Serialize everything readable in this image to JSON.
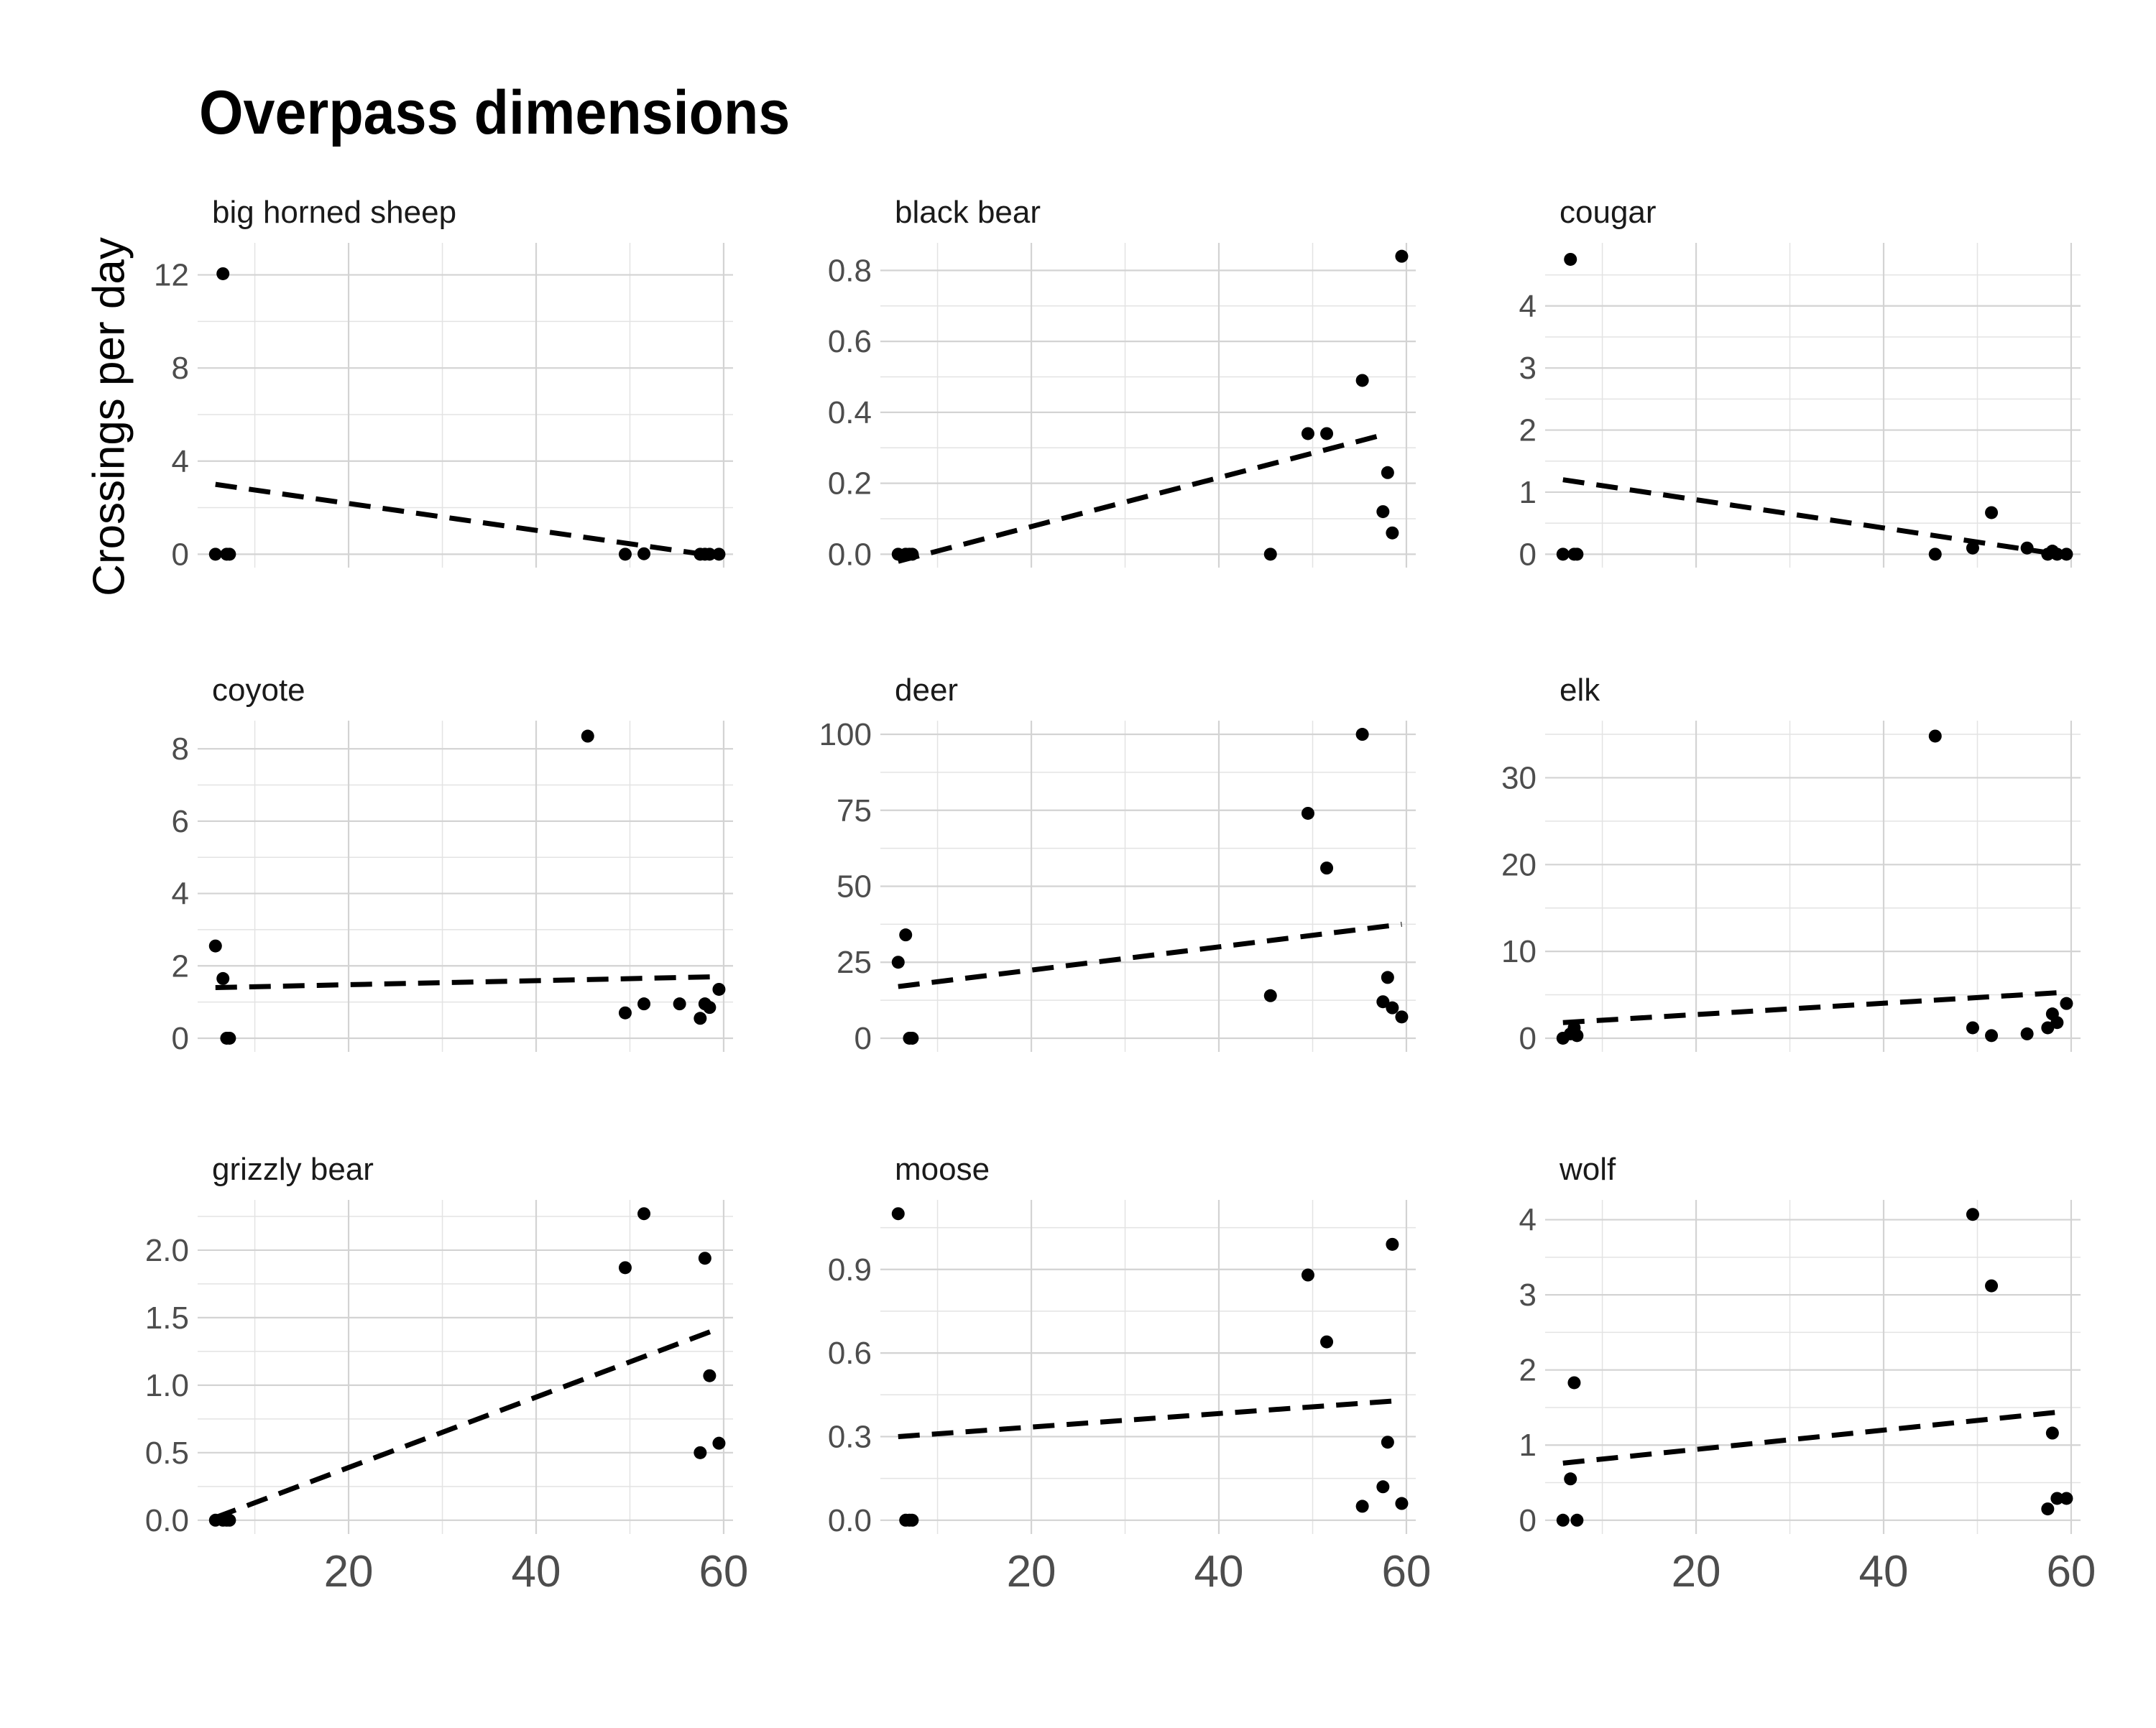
{
  "chart_data": {
    "type": "scatter",
    "title": "Overpass dimensions",
    "xlabel": "",
    "ylabel": "Crossings per day",
    "xlim": [
      5,
      60
    ],
    "x_ticks": [
      20,
      40,
      60
    ],
    "grid": true,
    "colors": {
      "points": "#000000",
      "trend": "#000000",
      "grid": "#d3d3d3",
      "tick_text": "#4d4d4d"
    },
    "panels": [
      {
        "name": "big horned sheep",
        "ylim": [
          0,
          12.8
        ],
        "y_ticks": [
          0,
          4,
          8,
          12
        ],
        "y_tick_labels": [
          "0",
          "4",
          "8",
          "12"
        ],
        "points": [
          [
            5.8,
            0
          ],
          [
            6.6,
            12.05
          ],
          [
            7.0,
            0
          ],
          [
            7.3,
            0
          ],
          [
            49.5,
            0
          ],
          [
            51.5,
            0.02
          ],
          [
            57.5,
            0
          ],
          [
            58.0,
            0
          ],
          [
            58.5,
            0
          ],
          [
            59.5,
            0
          ]
        ],
        "trend": [
          [
            5.8,
            3.0
          ],
          [
            59.5,
            -0.1
          ]
        ]
      },
      {
        "name": "black bear",
        "ylim": [
          0,
          0.84
        ],
        "y_ticks": [
          0,
          0.2,
          0.4,
          0.6,
          0.8
        ],
        "y_tick_labels": [
          "0.0",
          "0.2",
          "0.4",
          "0.6",
          "0.8"
        ],
        "points": [
          [
            5.8,
            0
          ],
          [
            6.6,
            0
          ],
          [
            7.0,
            0
          ],
          [
            7.3,
            0
          ],
          [
            45.5,
            0
          ],
          [
            49.5,
            0.34
          ],
          [
            51.5,
            0.34
          ],
          [
            55.3,
            0.49
          ],
          [
            57.5,
            0.12
          ],
          [
            58.0,
            0.23
          ],
          [
            58.5,
            0.06
          ],
          [
            59.5,
            0.84
          ]
        ],
        "trend": [
          [
            5.8,
            -0.02
          ],
          [
            58.0,
            0.34
          ]
        ]
      },
      {
        "name": "cougar",
        "ylim": [
          0,
          4.8
        ],
        "y_ticks": [
          0,
          1,
          2,
          3,
          4
        ],
        "y_tick_labels": [
          "0",
          "1",
          "2",
          "3",
          "4"
        ],
        "points": [
          [
            5.8,
            0
          ],
          [
            6.6,
            4.75
          ],
          [
            7.0,
            0
          ],
          [
            7.3,
            0
          ],
          [
            45.5,
            0
          ],
          [
            49.5,
            0.1
          ],
          [
            51.5,
            0.67
          ],
          [
            55.3,
            0.1
          ],
          [
            57.5,
            0
          ],
          [
            58.0,
            0.05
          ],
          [
            58.5,
            0
          ],
          [
            59.5,
            0
          ]
        ],
        "trend": [
          [
            5.8,
            1.2
          ],
          [
            59.5,
            -0.02
          ]
        ]
      },
      {
        "name": "coyote",
        "ylim": [
          0,
          8.4
        ],
        "y_ticks": [
          0,
          2,
          4,
          6,
          8
        ],
        "y_tick_labels": [
          "0",
          "2",
          "4",
          "6",
          "8"
        ],
        "points": [
          [
            5.8,
            2.55
          ],
          [
            6.6,
            1.65
          ],
          [
            7.0,
            0
          ],
          [
            7.3,
            0
          ],
          [
            45.5,
            8.35
          ],
          [
            49.5,
            0.7
          ],
          [
            51.5,
            0.95
          ],
          [
            55.3,
            0.95
          ],
          [
            57.5,
            0.55
          ],
          [
            58.0,
            0.95
          ],
          [
            58.5,
            0.85
          ],
          [
            59.5,
            1.35
          ]
        ],
        "trend": [
          [
            5.8,
            1.4
          ],
          [
            59.5,
            1.7
          ]
        ]
      },
      {
        "name": "deer",
        "ylim": [
          0,
          100
        ],
        "y_ticks": [
          0,
          25,
          50,
          75,
          100
        ],
        "y_tick_labels": [
          "0",
          "25",
          "50",
          "75",
          "100"
        ],
        "points": [
          [
            5.8,
            25
          ],
          [
            6.6,
            34
          ],
          [
            7.0,
            0
          ],
          [
            7.3,
            0
          ],
          [
            45.5,
            14
          ],
          [
            49.5,
            74
          ],
          [
            51.5,
            56
          ],
          [
            55.3,
            100
          ],
          [
            57.5,
            12
          ],
          [
            58.0,
            20
          ],
          [
            58.5,
            10
          ],
          [
            59.5,
            7
          ]
        ],
        "trend": [
          [
            5.8,
            17
          ],
          [
            59.5,
            37.5
          ]
        ]
      },
      {
        "name": "elk",
        "ylim": [
          0,
          35
        ],
        "y_ticks": [
          0,
          10,
          20,
          30
        ],
        "y_tick_labels": [
          "0",
          "10",
          "20",
          "30"
        ],
        "points": [
          [
            5.8,
            0
          ],
          [
            6.6,
            0.5
          ],
          [
            7.0,
            1.2
          ],
          [
            7.3,
            0.3
          ],
          [
            45.5,
            34.8
          ],
          [
            49.5,
            1.2
          ],
          [
            51.5,
            0.3
          ],
          [
            55.3,
            0.5
          ],
          [
            57.5,
            1.2
          ],
          [
            58.0,
            2.8
          ],
          [
            58.5,
            1.8
          ],
          [
            59.5,
            4
          ]
        ],
        "trend": [
          [
            5.8,
            1.8
          ],
          [
            59.5,
            5.3
          ]
        ]
      },
      {
        "name": "grizzly bear",
        "ylim": [
          0,
          2.27
        ],
        "y_ticks": [
          0,
          0.5,
          1.0,
          1.5,
          2.0
        ],
        "y_tick_labels": [
          "0.0",
          "0.5",
          "1.0",
          "1.5",
          "2.0"
        ],
        "points": [
          [
            5.8,
            0
          ],
          [
            6.6,
            0
          ],
          [
            7.0,
            0
          ],
          [
            7.3,
            0
          ],
          [
            49.5,
            1.87
          ],
          [
            51.5,
            2.27
          ],
          [
            57.5,
            0.5
          ],
          [
            58.0,
            1.94
          ],
          [
            58.5,
            1.07
          ],
          [
            59.5,
            0.57
          ]
        ],
        "trend": [
          [
            5.8,
            0.02
          ],
          [
            59.5,
            1.42
          ]
        ]
      },
      {
        "name": "moose",
        "ylim": [
          0,
          1.1
        ],
        "y_ticks": [
          0,
          0.3,
          0.6,
          0.9
        ],
        "y_tick_labels": [
          "0.0",
          "0.3",
          "0.6",
          "0.9"
        ],
        "points": [
          [
            5.8,
            1.1
          ],
          [
            6.6,
            0
          ],
          [
            7.0,
            0
          ],
          [
            7.3,
            0
          ],
          [
            49.5,
            0.88
          ],
          [
            51.5,
            0.64
          ],
          [
            55.3,
            0.05
          ],
          [
            57.5,
            0.12
          ],
          [
            58.0,
            0.28
          ],
          [
            58.5,
            0.99
          ],
          [
            59.5,
            0.06
          ]
        ],
        "trend": [
          [
            5.8,
            0.3
          ],
          [
            59.5,
            0.43
          ]
        ]
      },
      {
        "name": "wolf",
        "ylim": [
          0,
          4.08
        ],
        "y_ticks": [
          0,
          1,
          2,
          3,
          4
        ],
        "y_tick_labels": [
          "0",
          "1",
          "2",
          "3",
          "4"
        ],
        "points": [
          [
            5.8,
            0
          ],
          [
            6.6,
            0.55
          ],
          [
            7.0,
            1.83
          ],
          [
            7.3,
            0
          ],
          [
            49.5,
            4.07
          ],
          [
            51.5,
            3.12
          ],
          [
            57.5,
            0.15
          ],
          [
            58.0,
            1.16
          ],
          [
            58.5,
            0.29
          ],
          [
            59.5,
            0.29
          ]
        ],
        "trend": [
          [
            5.8,
            0.76
          ],
          [
            59.5,
            1.45
          ]
        ]
      }
    ]
  }
}
